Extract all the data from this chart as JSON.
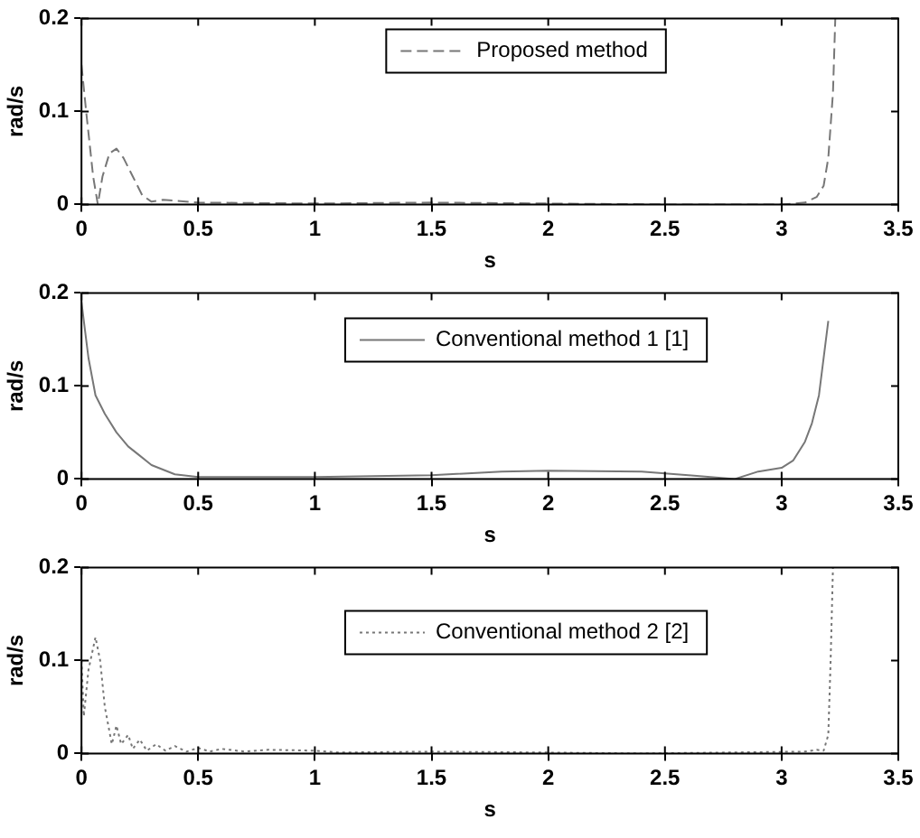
{
  "chart_data": [
    {
      "type": "line",
      "xlabel": "s",
      "ylabel": "rad/s",
      "xlim": [
        0,
        3.5
      ],
      "ylim": [
        0,
        0.2
      ],
      "xticks": [
        0,
        0.5,
        1,
        1.5,
        2,
        2.5,
        3,
        3.5
      ],
      "yticks": [
        0,
        0.1,
        0.2
      ],
      "grid": false,
      "legend": "top",
      "line_style": "dashed",
      "marker": "none",
      "series": [
        {
          "name": "Proposed method",
          "color": "#777777",
          "x": [
            0,
            0.02,
            0.05,
            0.07,
            0.09,
            0.12,
            0.15,
            0.18,
            0.22,
            0.26,
            0.3,
            0.35,
            0.4,
            0.5,
            1,
            1.5,
            2,
            2.5,
            3,
            3.1,
            3.15,
            3.18,
            3.2,
            3.22,
            3.23
          ],
          "values": [
            0.15,
            0.1,
            0.03,
            0,
            0.03,
            0.055,
            0.06,
            0.05,
            0.03,
            0.01,
            0.003,
            0.005,
            0.004,
            0.002,
            0.001,
            0.002,
            0.001,
            0,
            0,
            0.002,
            0.008,
            0.02,
            0.05,
            0.12,
            0.2
          ]
        }
      ]
    },
    {
      "type": "line",
      "xlabel": "s",
      "ylabel": "rad/s",
      "xlim": [
        0,
        3.5
      ],
      "ylim": [
        0,
        0.2
      ],
      "xticks": [
        0,
        0.5,
        1,
        1.5,
        2,
        2.5,
        3,
        3.5
      ],
      "yticks": [
        0,
        0.1,
        0.2
      ],
      "grid": false,
      "legend": "top",
      "line_style": "solid",
      "marker": "none",
      "series": [
        {
          "name": "Conventional method 1 [1]",
          "color": "#777777",
          "x": [
            0,
            0.03,
            0.06,
            0.1,
            0.15,
            0.2,
            0.25,
            0.3,
            0.4,
            0.5,
            1,
            1.5,
            1.8,
            2,
            2.4,
            2.6,
            2.8,
            2.9,
            3,
            3.05,
            3.1,
            3.13,
            3.16,
            3.2
          ],
          "values": [
            0.19,
            0.13,
            0.09,
            0.07,
            0.05,
            0.035,
            0.025,
            0.015,
            0.005,
            0.002,
            0.002,
            0.004,
            0.008,
            0.009,
            0.008,
            0.004,
            0,
            0.008,
            0.012,
            0.02,
            0.04,
            0.06,
            0.09,
            0.17
          ]
        }
      ]
    },
    {
      "type": "line",
      "xlabel": "s",
      "ylabel": "rad/s",
      "xlim": [
        0,
        3.5
      ],
      "ylim": [
        0,
        0.2
      ],
      "xticks": [
        0,
        0.5,
        1,
        1.5,
        2,
        2.5,
        3,
        3.5
      ],
      "yticks": [
        0,
        0.1,
        0.2
      ],
      "grid": false,
      "legend": "top",
      "line_style": "dotted",
      "marker": "none",
      "series": [
        {
          "name": "Conventional method 2 [2]",
          "color": "#777777",
          "x": [
            0,
            0.01,
            0.03,
            0.06,
            0.08,
            0.1,
            0.13,
            0.15,
            0.17,
            0.2,
            0.22,
            0.25,
            0.28,
            0.32,
            0.36,
            0.4,
            0.45,
            0.5,
            0.55,
            0.6,
            0.7,
            0.8,
            1,
            1.1,
            1.5,
            2,
            2.4,
            3.1,
            3.15,
            3.18,
            3.2,
            3.21,
            3.22
          ],
          "values": [
            0.1,
            0.04,
            0.09,
            0.125,
            0.1,
            0.05,
            0.01,
            0.03,
            0.01,
            0.02,
            0.005,
            0.015,
            0.003,
            0.01,
            0.003,
            0.008,
            0.002,
            0.006,
            0.002,
            0.005,
            0.002,
            0.004,
            0.003,
            0.001,
            0.002,
            0.001,
            0,
            0.002,
            0.004,
            0.003,
            0.02,
            0.1,
            0.2
          ]
        }
      ]
    }
  ]
}
